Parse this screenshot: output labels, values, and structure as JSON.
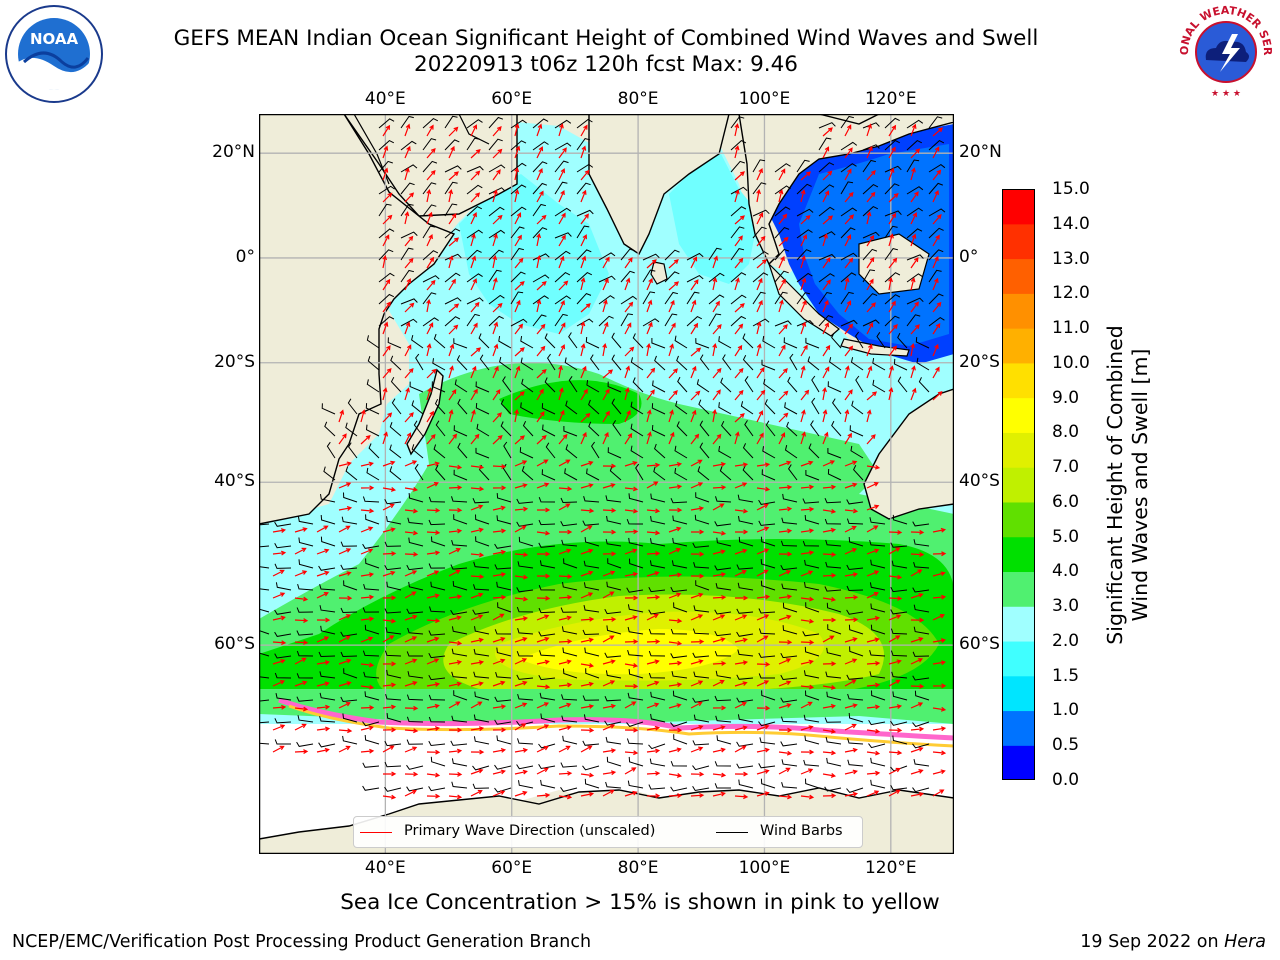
{
  "title": "GEFS MEAN Indian Ocean Significant Height of Combined Wind Waves and Swell",
  "subtitle": "20220913 t06z 120h fcst   Max: 9.46",
  "logos": {
    "left": "noaa-logo",
    "right": "national-weather-service-logo"
  },
  "logo_text": {
    "noaa": "NOAA",
    "nws": "NATIONAL WEATHER SERVICE"
  },
  "map": {
    "projection": "Mercator",
    "lon_range": [
      20,
      130
    ],
    "lat_range": [
      -75,
      27
    ],
    "lon_ticks": [
      {
        "lon": 40,
        "label": "40°E"
      },
      {
        "lon": 60,
        "label": "60°E"
      },
      {
        "lon": 80,
        "label": "80°E"
      },
      {
        "lon": 100,
        "label": "100°E"
      },
      {
        "lon": 120,
        "label": "120°E"
      }
    ],
    "lat_ticks": [
      {
        "lat": 20,
        "label": "20°N"
      },
      {
        "lat": 0,
        "label": "0°"
      },
      {
        "lat": -20,
        "label": "20°S"
      },
      {
        "lat": -40,
        "label": "40°S"
      },
      {
        "lat": -60,
        "label": "60°S"
      }
    ],
    "grid": true,
    "colors": {
      "land": "#efedd9",
      "coastline": "#000000",
      "grid": "#b3b3b3",
      "wave_arrow": "#ff0000",
      "wind_barb": "#000000",
      "sea_ice": [
        "#ff66cc",
        "#ffcc33",
        "#ffff66"
      ]
    },
    "wave_regions_note": "shaded significant wave height field"
  },
  "legend": {
    "items": [
      {
        "label": "Primary Wave Direction (unscaled)",
        "color": "#ff0000"
      },
      {
        "label": "Wind Barbs",
        "color": "#000000"
      }
    ],
    "placement": "lower-center"
  },
  "colorbar": {
    "label": "Significant Height of Combined\nWind Waves and Swell [m]",
    "label_lines": [
      "Significant Height of Combined",
      "Wind Waves and Swell [m]"
    ],
    "ticks": [
      "0.0",
      "0.5",
      "1.0",
      "1.5",
      "2.0",
      "3.0",
      "4.0",
      "5.0",
      "6.0",
      "7.0",
      "8.0",
      "9.0",
      "10.0",
      "11.0",
      "12.0",
      "13.0",
      "14.0",
      "15.0"
    ],
    "colors": [
      "#0000ff",
      "#0073ff",
      "#00e5ff",
      "#40ffff",
      "#a0ffff",
      "#50f070",
      "#00e000",
      "#60e000",
      "#c0f000",
      "#e0f000",
      "#ffff00",
      "#ffe000",
      "#ffb000",
      "#ff9000",
      "#ff6000",
      "#ff3000",
      "#ff0000"
    ]
  },
  "chart_data": {
    "type": "heatmap",
    "title": "GEFS MEAN Indian Ocean Significant Height of Combined Wind Waves and Swell",
    "subtitle": "20220913 t06z 120h fcst   Max: 9.46",
    "max": 9.46,
    "variable_label": "Significant Height of Combined Wind Waves and Swell [m]",
    "color_levels": [
      0.0,
      0.5,
      1.0,
      1.5,
      2.0,
      3.0,
      4.0,
      5.0,
      6.0,
      7.0,
      8.0,
      9.0,
      10.0,
      11.0,
      12.0,
      13.0,
      14.0,
      15.0
    ],
    "xlim": [
      20,
      130
    ],
    "ylim": [
      -75,
      27
    ]
  },
  "ice_note": "Sea Ice Concentration > 15% is shown in pink to yellow",
  "footer": {
    "left": "NCEP/EMC/Verification Post Processing Product Generation Branch",
    "right_date": "19 Sep 2022 on ",
    "right_host": "Hera"
  }
}
